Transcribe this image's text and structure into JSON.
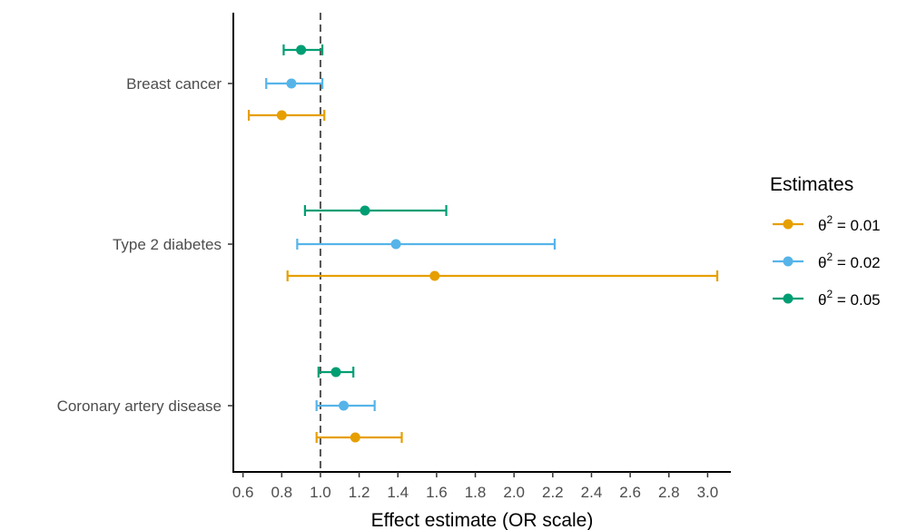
{
  "chart_data": {
    "type": "forest",
    "xlabel": "Effect estimate (OR scale)",
    "ylabel": "",
    "xlim": [
      0.55,
      3.12
    ],
    "x_ticks": [
      0.6,
      0.8,
      1.0,
      1.2,
      1.4,
      1.6,
      1.8,
      2.0,
      2.2,
      2.4,
      2.6,
      2.8,
      3.0
    ],
    "x_tick_labels": [
      "0.6",
      "0.8",
      "1.0",
      "1.2",
      "1.4",
      "1.6",
      "1.8",
      "2.0",
      "2.2",
      "2.4",
      "2.6",
      "2.8",
      "3.0"
    ],
    "reference_line": 1.0,
    "categories": [
      "Breast cancer",
      "Type 2 diabetes",
      "Coronary artery disease"
    ],
    "legend": {
      "title": "Estimates",
      "placement": "right",
      "theta_symbol": "θ",
      "superscript": "2"
    },
    "series": [
      {
        "name_value": "= 0.01",
        "color": "#E69F00",
        "points": [
          {
            "category": "Breast cancer",
            "estimate": 0.8,
            "lower": 0.63,
            "upper": 1.02
          },
          {
            "category": "Type 2 diabetes",
            "estimate": 1.59,
            "lower": 0.83,
            "upper": 3.05
          },
          {
            "category": "Coronary artery disease",
            "estimate": 1.18,
            "lower": 0.98,
            "upper": 1.42
          }
        ]
      },
      {
        "name_value": "= 0.02",
        "color": "#56B4E9",
        "points": [
          {
            "category": "Breast cancer",
            "estimate": 0.85,
            "lower": 0.72,
            "upper": 1.01
          },
          {
            "category": "Type 2 diabetes",
            "estimate": 1.39,
            "lower": 0.88,
            "upper": 2.21
          },
          {
            "category": "Coronary artery disease",
            "estimate": 1.12,
            "lower": 0.98,
            "upper": 1.28
          }
        ]
      },
      {
        "name_value": "= 0.05",
        "color": "#009E73",
        "points": [
          {
            "category": "Breast cancer",
            "estimate": 0.9,
            "lower": 0.81,
            "upper": 1.01
          },
          {
            "category": "Type 2 diabetes",
            "estimate": 1.23,
            "lower": 0.92,
            "upper": 1.65
          },
          {
            "category": "Coronary artery disease",
            "estimate": 1.08,
            "lower": 0.99,
            "upper": 1.17
          }
        ]
      }
    ]
  }
}
